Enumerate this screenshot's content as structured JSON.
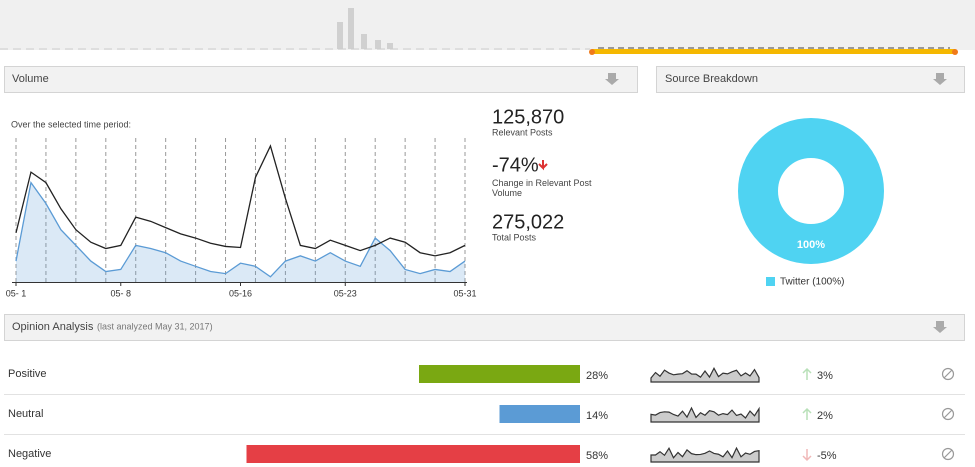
{
  "volume": {
    "title": "Volume",
    "subtitle": "Over the selected time period:",
    "categories": [
      "05- 1",
      null,
      null,
      null,
      null,
      null,
      null,
      "05- 8",
      null,
      null,
      null,
      null,
      null,
      null,
      null,
      "05-16",
      null,
      null,
      null,
      null,
      null,
      null,
      "05-23",
      null,
      null,
      null,
      null,
      null,
      null,
      null,
      "05-31"
    ],
    "series": [
      {
        "name": "Total",
        "color": "#222222",
        "values": [
          47,
          105,
          95,
          70,
          50,
          38,
          32,
          35,
          62,
          58,
          52,
          46,
          42,
          37,
          34,
          33,
          100,
          130,
          80,
          35,
          32,
          40,
          35,
          30,
          35,
          42,
          38,
          28,
          25,
          28,
          35
        ]
      },
      {
        "name": "Relevant",
        "color": "#5b9bd5",
        "values": [
          20,
          95,
          75,
          50,
          35,
          20,
          10,
          12,
          35,
          32,
          28,
          20,
          15,
          10,
          8,
          18,
          15,
          5,
          20,
          25,
          20,
          28,
          20,
          15,
          42,
          30,
          12,
          8,
          12,
          10,
          20
        ]
      }
    ]
  },
  "stats": [
    {
      "value": "125,870",
      "label": "Relevant Posts"
    },
    {
      "value": "-74%",
      "label": "Change in Relevant Post Volume"
    },
    {
      "value": "275,022",
      "label": "Total Posts"
    }
  ],
  "source": {
    "title": "Source Breakdown",
    "slices": [
      {
        "name": "Twitter",
        "value": 100,
        "label": "100%",
        "legend": "Twitter (100%)",
        "color": "#4fd3f2"
      }
    ]
  },
  "opinion": {
    "title": "Opinion Analysis",
    "note": "(last analyzed May 31, 2017)",
    "rows": [
      {
        "name": "Positive",
        "value": 28,
        "label": "28%",
        "color": "#7aa812",
        "change": 3,
        "change_label": "3%"
      },
      {
        "name": "Neutral",
        "value": 14,
        "label": "14%",
        "color": "#5b9bd5",
        "change": 2,
        "change_label": "2%"
      },
      {
        "name": "Negative",
        "value": 58,
        "label": "58%",
        "color": "#e53f45",
        "change": -5,
        "change_label": "-5%"
      }
    ]
  }
}
